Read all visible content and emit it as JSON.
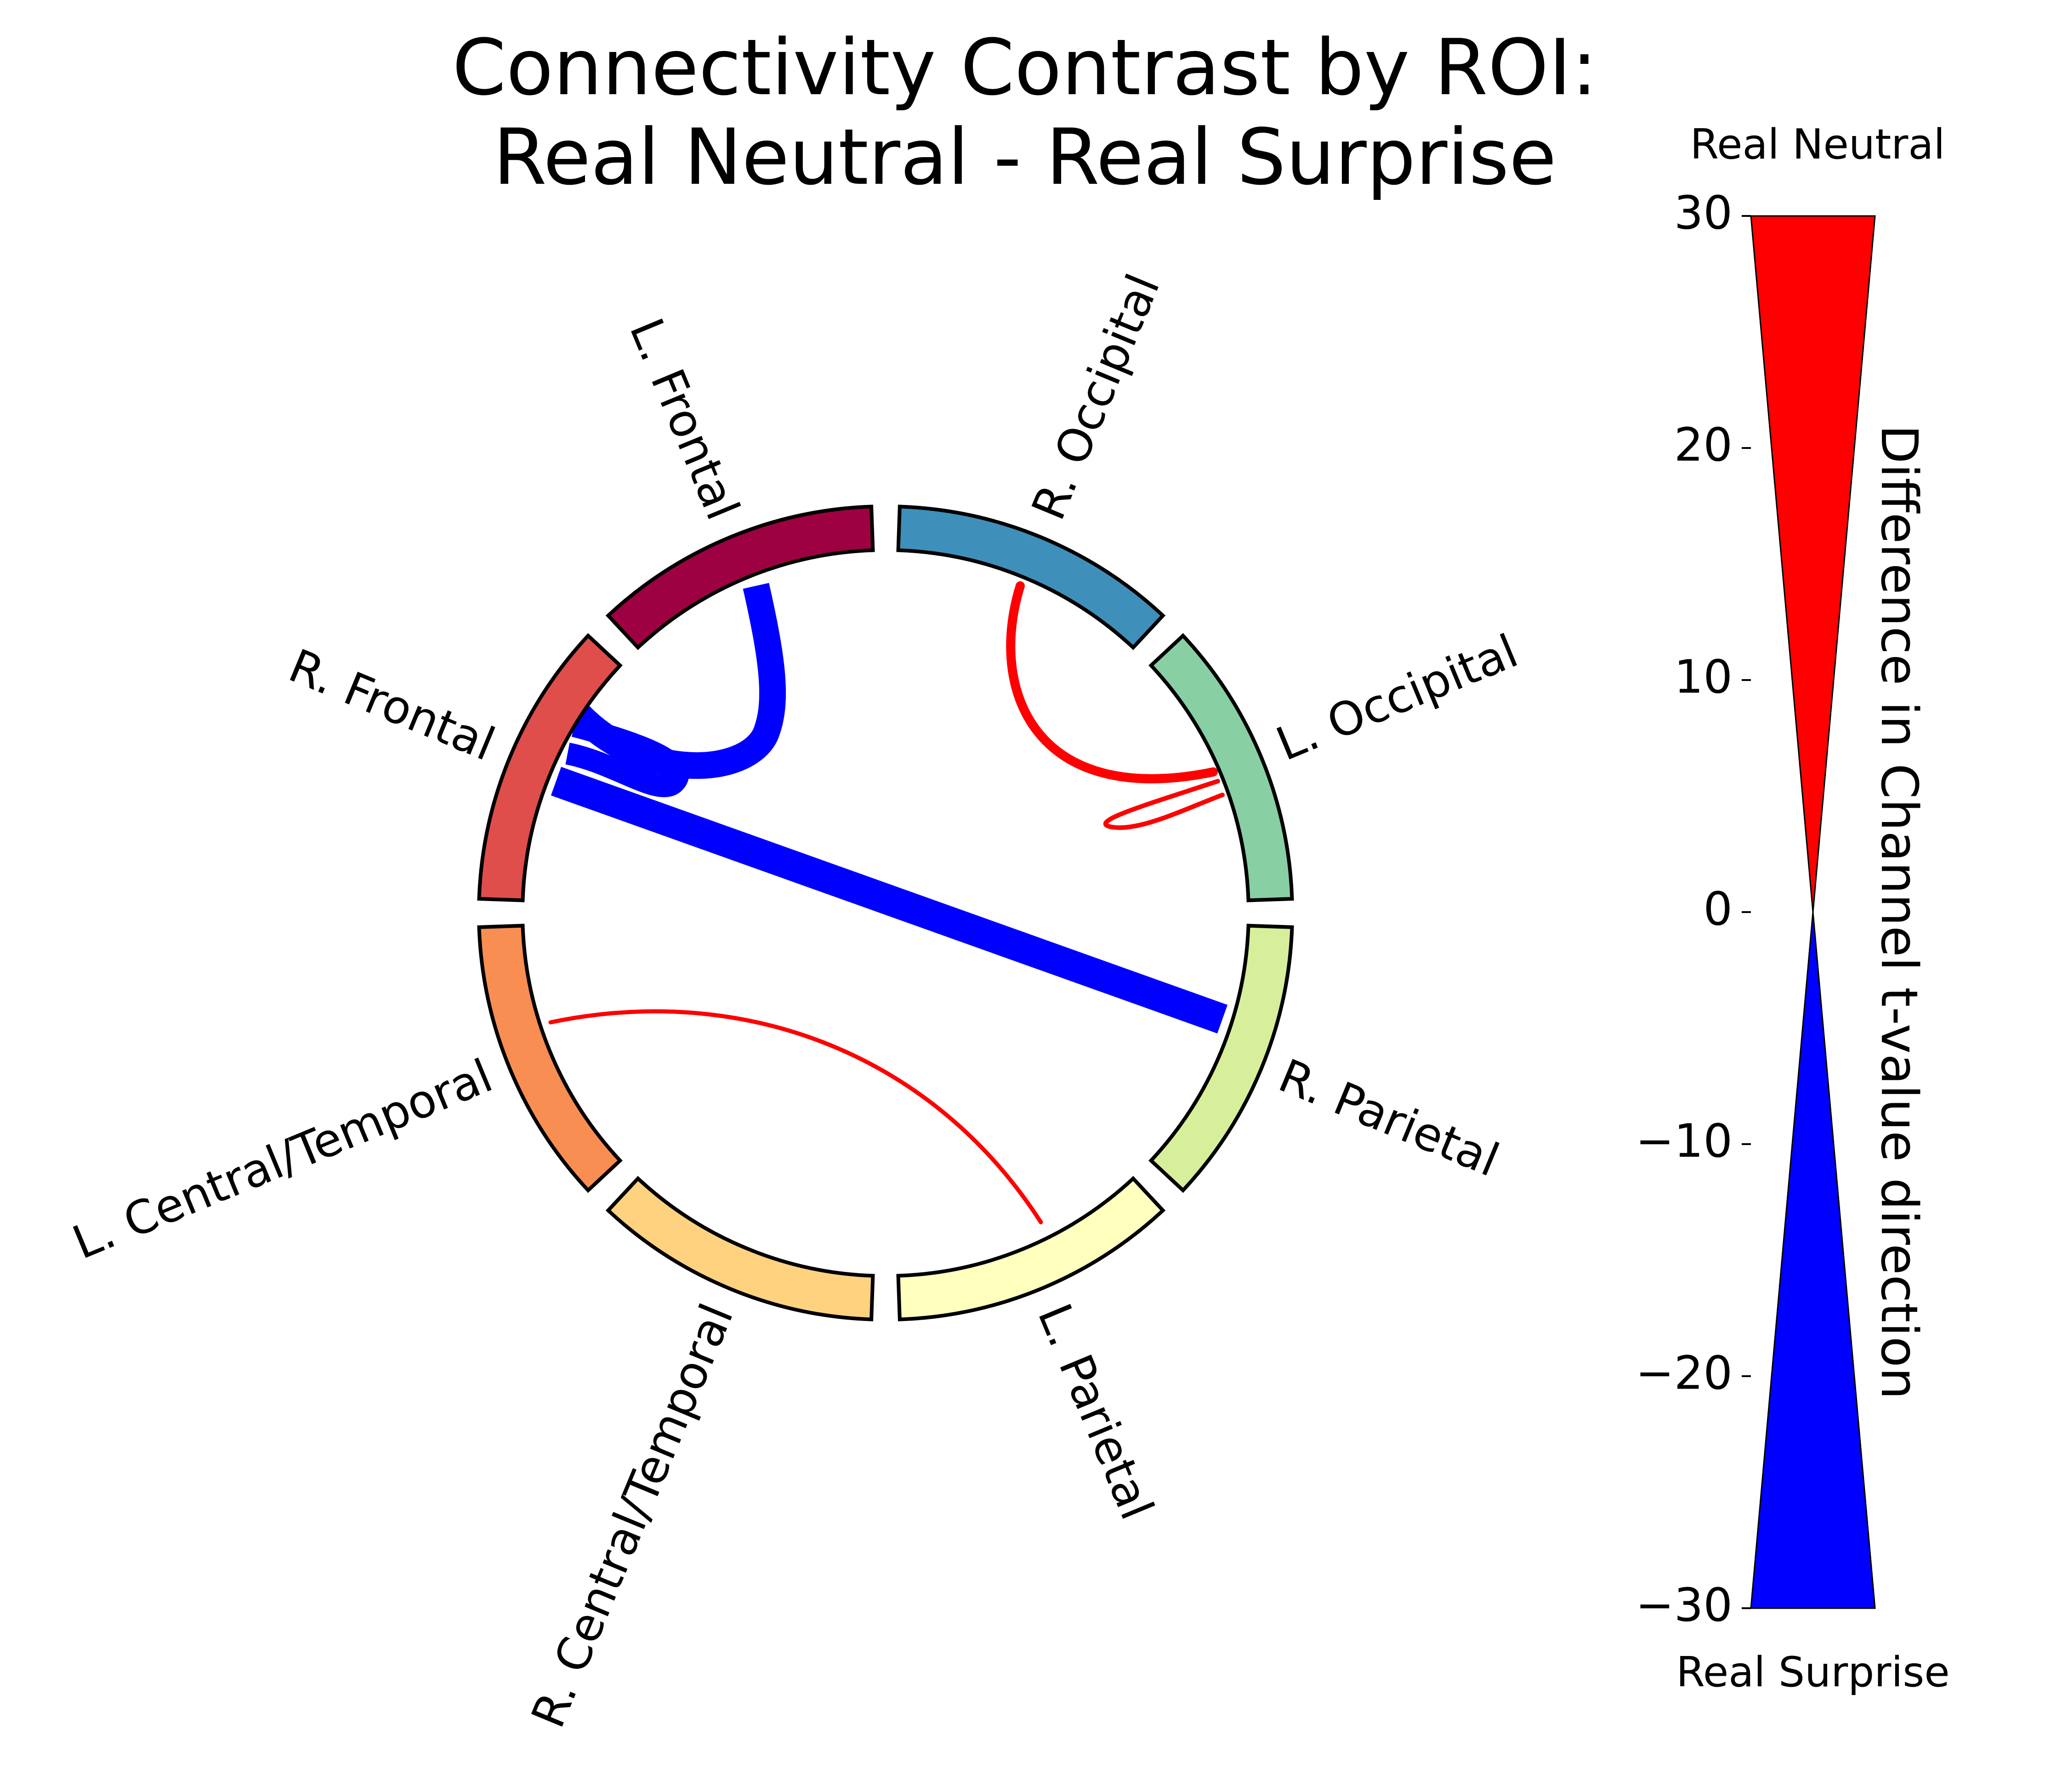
{
  "title": {
    "line1": "Connectivity Contrast by ROI:",
    "line2": "Real Neutral - Real Surprise"
  },
  "rois": [
    {
      "id": "l_frontal",
      "label": "L. Frontal",
      "color": "#9e0142"
    },
    {
      "id": "r_occ",
      "label": "R. Occipital",
      "color": "#3f8fbb"
    },
    {
      "id": "l_occ",
      "label": "L. Occipital",
      "color": "#88d0a4"
    },
    {
      "id": "r_par",
      "label": "R. Parietal",
      "color": "#d7ef9b"
    },
    {
      "id": "l_par",
      "label": "L. Parietal",
      "color": "#ffffbe"
    },
    {
      "id": "r_ct",
      "label": "R. Central/Temporal",
      "color": "#fed27f"
    },
    {
      "id": "l_ct",
      "label": "L. Central/Temporal",
      "color": "#f98e52"
    },
    {
      "id": "r_frontal",
      "label": "R. Frontal",
      "color": "#df4e4b"
    }
  ],
  "connections": [
    {
      "from": "l_frontal",
      "to": "r_frontal",
      "sign": "negative",
      "color": "#0000ff"
    },
    {
      "from": "r_frontal",
      "to": "r_frontal",
      "sign": "negative",
      "color": "#0000ff"
    },
    {
      "from": "r_frontal",
      "to": "r_par",
      "sign": "negative",
      "color": "#0000ff"
    },
    {
      "from": "r_occ",
      "to": "l_occ",
      "sign": "positive",
      "color": "#ff0000"
    },
    {
      "from": "l_occ",
      "to": "l_occ",
      "sign": "positive",
      "color": "#ff0000"
    },
    {
      "from": "l_ct",
      "to": "l_par",
      "sign": "positive",
      "color": "#ff0000"
    }
  ],
  "colorbar": {
    "top_label": "Real Neutral",
    "bottom_label": "Real Surprise",
    "axis_label": "Difference in Channel t-value direction",
    "range": [
      -30,
      30
    ],
    "ticks": [
      30,
      20,
      10,
      0,
      -10,
      -20,
      -30
    ],
    "tick_labels": [
      "30",
      "20",
      "10",
      "0",
      "−10",
      "−20",
      "−30"
    ],
    "positive_color": "#ff0000",
    "negative_color": "#0000ff"
  }
}
